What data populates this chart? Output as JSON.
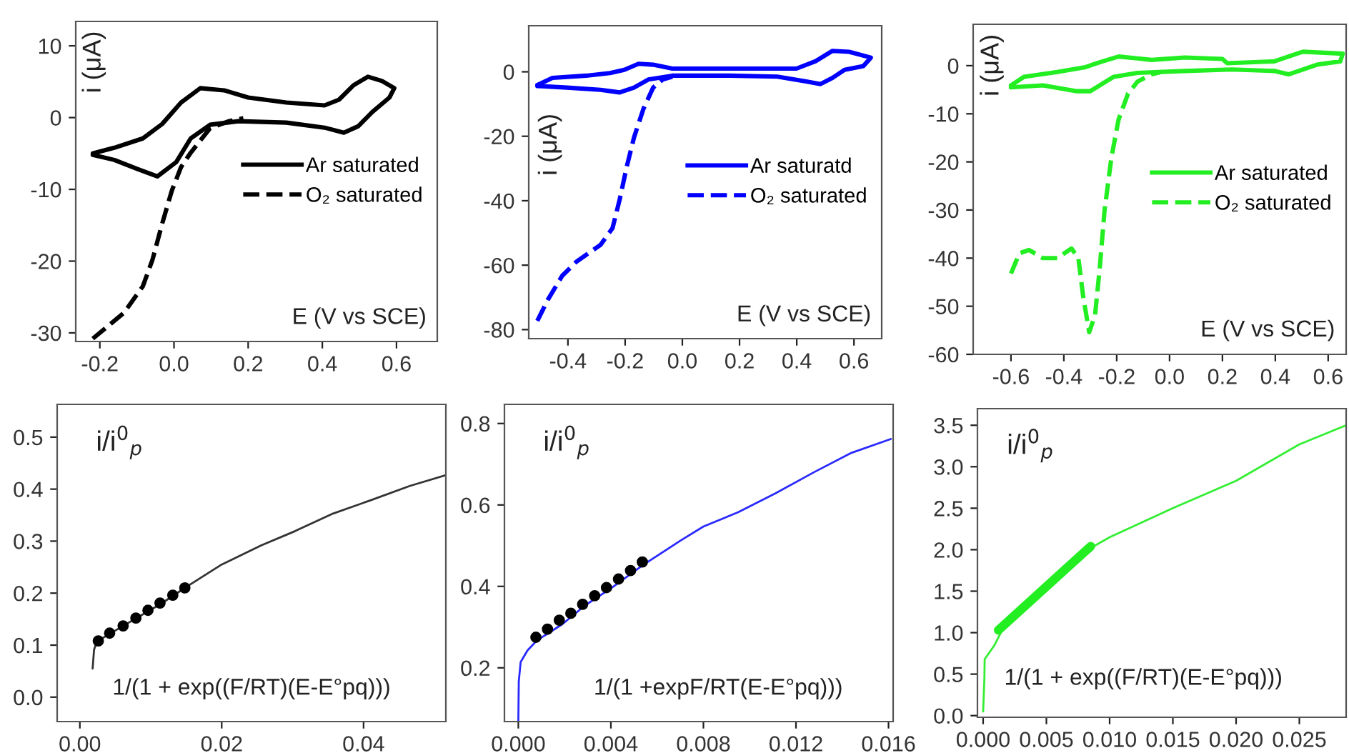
{
  "chart_data": [
    {
      "type": "line",
      "xlabel": "E (V vs SCE)",
      "ylabel": "i (μA)",
      "xlim": [
        -0.265,
        0.71
      ],
      "ylim": [
        -31.2,
        13.4
      ],
      "xticks": [
        -0.2,
        {
          "value": 0,
          "label": "0.0"
        },
        0.2,
        0.4,
        0.6
      ],
      "yticks": [
        -30,
        -20,
        -10,
        0,
        10
      ],
      "legend": "center right",
      "grid": false,
      "series": [
        {
          "name": "Ar saturated",
          "color": "#000000",
          "line_style": "solid",
          "x": [
            -0.219,
            -0.161,
            -0.084,
            -0.032,
            0.019,
            0.071,
            0.135,
            0.2,
            0.303,
            0.406,
            0.445,
            0.484,
            0.523,
            0.561,
            0.594,
            0.581,
            0.535,
            0.497,
            0.458,
            0.406,
            0.303,
            0.174,
            0.097,
            0.045,
            0.006,
            -0.045,
            -0.097,
            -0.161,
            -0.219
          ],
          "values": [
            -5.0,
            -4.2,
            -2.9,
            -0.9,
            2.1,
            4.1,
            3.8,
            2.8,
            2.1,
            1.7,
            2.5,
            4.5,
            5.7,
            5.1,
            4.1,
            2.8,
            0.8,
            -1.2,
            -2.1,
            -1.4,
            -0.7,
            -0.5,
            -1.0,
            -2.9,
            -6.2,
            -8.2,
            -7.2,
            -5.9,
            -5.2
          ]
        },
        {
          "name": "O₂ saturated",
          "color": "#000000",
          "line_style": "dashed",
          "x": [
            -0.219,
            -0.135,
            -0.084,
            -0.058,
            -0.032,
            -0.006,
            0.019,
            0.045,
            0.097,
            0.148,
            0.187
          ],
          "values": [
            -30.8,
            -27.2,
            -23.5,
            -19.8,
            -14.8,
            -10.2,
            -6.9,
            -4.9,
            -1.5,
            -0.5,
            -0.1
          ]
        }
      ]
    },
    {
      "type": "line",
      "xlabel": "E (V vs SCE)",
      "ylabel": "i (μA)",
      "xlim": [
        -0.537,
        0.697
      ],
      "ylim": [
        -82.8,
        14.3
      ],
      "xticks": [
        -0.4,
        -0.2,
        {
          "value": 0,
          "label": "0.0"
        },
        0.2,
        0.4,
        0.6
      ],
      "yticks": [
        -80,
        -60,
        -40,
        -20,
        0
      ],
      "legend": "center right",
      "grid": false,
      "series": [
        {
          "name": "Ar saturatd",
          "color": "#0000ff",
          "line_style": "solid",
          "x": [
            -0.507,
            -0.454,
            -0.336,
            -0.253,
            -0.203,
            -0.153,
            -0.102,
            -0.035,
            0.165,
            0.399,
            0.466,
            0.525,
            0.583,
            0.659,
            0.633,
            0.567,
            0.525,
            0.483,
            0.433,
            0.332,
            0.165,
            -0.035,
            -0.119,
            -0.169,
            -0.219,
            -0.286,
            -0.403,
            -0.507
          ],
          "values": [
            -4.1,
            -1.9,
            -1.2,
            -0.4,
            0.6,
            2.5,
            2.2,
            1.0,
            1.0,
            1.0,
            3.3,
            6.5,
            6.2,
            4.4,
            1.8,
            0.6,
            -1.9,
            -3.8,
            -3.0,
            -1.5,
            -1.2,
            -1.2,
            -2.4,
            -4.9,
            -6.4,
            -5.6,
            -4.9,
            -4.4
          ]
        },
        {
          "name": "O₂ saturated",
          "color": "#0000ff",
          "line_style": "dashed",
          "x": [
            -0.507,
            -0.47,
            -0.42,
            -0.37,
            -0.286,
            -0.244,
            -0.219,
            -0.194,
            -0.169,
            -0.136,
            -0.102,
            -0.069,
            -0.035
          ],
          "values": [
            -77.3,
            -70.7,
            -63.3,
            -58.9,
            -53.7,
            -48.5,
            -39.6,
            -29.3,
            -20.4,
            -11.5,
            -4.9,
            -2.4,
            -1.5
          ]
        }
      ]
    },
    {
      "type": "line",
      "xlabel": "E (V vs SCE)",
      "ylabel": "i (μA)",
      "xlim": [
        -0.743,
        0.668
      ],
      "ylim": [
        -60,
        8.6
      ],
      "xticks": [
        -0.6,
        -0.4,
        -0.2,
        {
          "value": 0,
          "label": "0.0"
        },
        0.2,
        0.4,
        0.6
      ],
      "yticks": [
        -60,
        -50,
        -40,
        -30,
        -20,
        -10,
        0
      ],
      "legend": "center right",
      "grid": false,
      "series": [
        {
          "name": "Ar saturated",
          "color": "#22ee22",
          "line_style": "solid",
          "x": [
            -0.6,
            -0.55,
            -0.425,
            -0.318,
            -0.264,
            -0.193,
            -0.121,
            -0.068,
            0.057,
            0.2,
            0.218,
            0.396,
            0.45,
            0.504,
            0.655,
            0.646,
            0.557,
            0.504,
            0.45,
            0.396,
            0.236,
            0.057,
            -0.121,
            -0.211,
            -0.3,
            -0.354,
            -0.479,
            -0.6
          ],
          "values": [
            -4.1,
            -2.3,
            -1.3,
            -0.3,
            0.7,
            1.9,
            1.5,
            1.2,
            1.7,
            1.4,
            0.5,
            0.9,
            1.9,
            2.9,
            2.5,
            0.9,
            0.2,
            -0.8,
            -1.8,
            -1.1,
            -0.8,
            -1.1,
            -1.5,
            -2.3,
            -5.3,
            -5.3,
            -4.1,
            -4.5
          ]
        },
        {
          "name": "O₂ saturated",
          "color": "#22ee22",
          "line_style": "dashed",
          "x": [
            -0.6,
            -0.568,
            -0.532,
            -0.479,
            -0.425,
            -0.371,
            -0.345,
            -0.327,
            -0.304,
            -0.282,
            -0.264,
            -0.246,
            -0.22,
            -0.193,
            -0.157,
            -0.121,
            -0.068,
            -0.032
          ],
          "values": [
            -43.2,
            -39,
            -38.3,
            -40,
            -40,
            -38,
            -40,
            -47.9,
            -55.4,
            -51.9,
            -42,
            -30.1,
            -19.1,
            -11.2,
            -5.8,
            -3.3,
            -1.8,
            -1.3
          ]
        }
      ]
    },
    {
      "type": "line",
      "xlabel": "1/(1 + exp((F/RT)(E-E°pq)))",
      "ylabel": "i/i$^{0}$$_{p}$",
      "xlim": [
        -0.0032,
        0.0516
      ],
      "ylim": [
        -0.047,
        0.563
      ],
      "xticks": [
        {
          "value": 0,
          "label": "0.00"
        },
        0.02,
        0.04
      ],
      "yticks": [
        {
          "value": 0,
          "label": "0.0"
        },
        0.1,
        0.2,
        0.3,
        0.4,
        0.5
      ],
      "grid": false,
      "series": [
        {
          "color": "#333333",
          "type": "line",
          "x": [
            0.0018,
            0.002,
            0.0024,
            0.0061,
            0.0115,
            0.0148,
            0.02,
            0.0256,
            0.0303,
            0.0357,
            0.0411,
            0.0465,
            0.0516
          ],
          "values": [
            0.055,
            0.091,
            0.107,
            0.137,
            0.18,
            0.21,
            0.255,
            0.292,
            0.319,
            0.353,
            0.379,
            0.406,
            0.427
          ]
        },
        {
          "color": "#000000",
          "type": "scatter",
          "marker": "circle",
          "x": [
            0.0026,
            0.0042,
            0.0061,
            0.0079,
            0.0096,
            0.0113,
            0.0131,
            0.0148
          ],
          "values": [
            0.108,
            0.123,
            0.137,
            0.152,
            0.167,
            0.181,
            0.196,
            0.21
          ]
        }
      ]
    },
    {
      "type": "line",
      "xlabel": "1/(1 +expF/RT(E-E°pq)))",
      "ylabel": "i/i$^{0}$$_{p}$",
      "xlim": [
        -0.0006,
        0.0162
      ],
      "ylim": [
        0.068,
        0.847
      ],
      "xticks": [
        {
          "value": 0,
          "label": "0.000"
        },
        0.004,
        0.008,
        0.012,
        0.016
      ],
      "yticks": [
        0.2,
        0.4,
        0.6,
        0.8
      ],
      "grid": false,
      "series": [
        {
          "color": "#2a2aff",
          "type": "line",
          "x": [
            0,
            2e-05,
            0.0001,
            0.0004,
            0.0008,
            0.0019,
            0.0029,
            0.004,
            0.0054,
            0.007,
            0.008,
            0.0095,
            0.0111,
            0.0128,
            0.0144,
            0.0161
          ],
          "values": [
            0.068,
            0.167,
            0.214,
            0.243,
            0.267,
            0.307,
            0.354,
            0.395,
            0.453,
            0.512,
            0.547,
            0.582,
            0.628,
            0.681,
            0.728,
            0.762
          ]
        },
        {
          "color": "#000000",
          "type": "scatter",
          "marker": "circle",
          "x": [
            0.00076,
            0.00126,
            0.00177,
            0.00227,
            0.00278,
            0.0033,
            0.00381,
            0.00433,
            0.00485,
            0.00536
          ],
          "values": [
            0.275,
            0.295,
            0.317,
            0.334,
            0.356,
            0.377,
            0.397,
            0.418,
            0.439,
            0.46
          ]
        }
      ]
    },
    {
      "type": "line",
      "xlabel": "1/(1 + exp((F/RT)(E-E°pq)))",
      "ylabel": "i/i$^{0}$$_{p}$",
      "xlim": [
        -0.00045,
        0.0287
      ],
      "ylim": [
        -0.02,
        3.7
      ],
      "xticks": [
        {
          "value": 0,
          "label": "0.000"
        },
        0.005,
        {
          "value": 0.01,
          "label": "0.010"
        },
        0.015,
        {
          "value": 0.02,
          "label": "0.020"
        },
        0.025
      ],
      "yticks": [
        {
          "value": 0,
          "label": "0.0"
        },
        0.5,
        {
          "value": 1,
          "label": "1.0"
        },
        1.5,
        {
          "value": 2,
          "label": "2.0"
        },
        2.5,
        {
          "value": 3,
          "label": "3.0"
        },
        3.5
      ],
      "grid": false,
      "series": [
        {
          "color": "#33ee33",
          "type": "line",
          "x": [
            0,
            0.0001,
            0.00012,
            0.0009,
            0.0016,
            0.005,
            0.0085,
            0.01,
            0.015,
            0.02,
            0.025,
            0.0287
          ],
          "values": [
            0.05,
            0.45,
            0.68,
            0.85,
            1.06,
            1.58,
            2.02,
            2.15,
            2.5,
            2.83,
            3.27,
            3.5
          ]
        },
        {
          "color": "#22ee22",
          "type": "line",
          "x": [
            0.0012,
            0.0085
          ],
          "values": [
            1.03,
            2.04
          ]
        }
      ]
    }
  ]
}
